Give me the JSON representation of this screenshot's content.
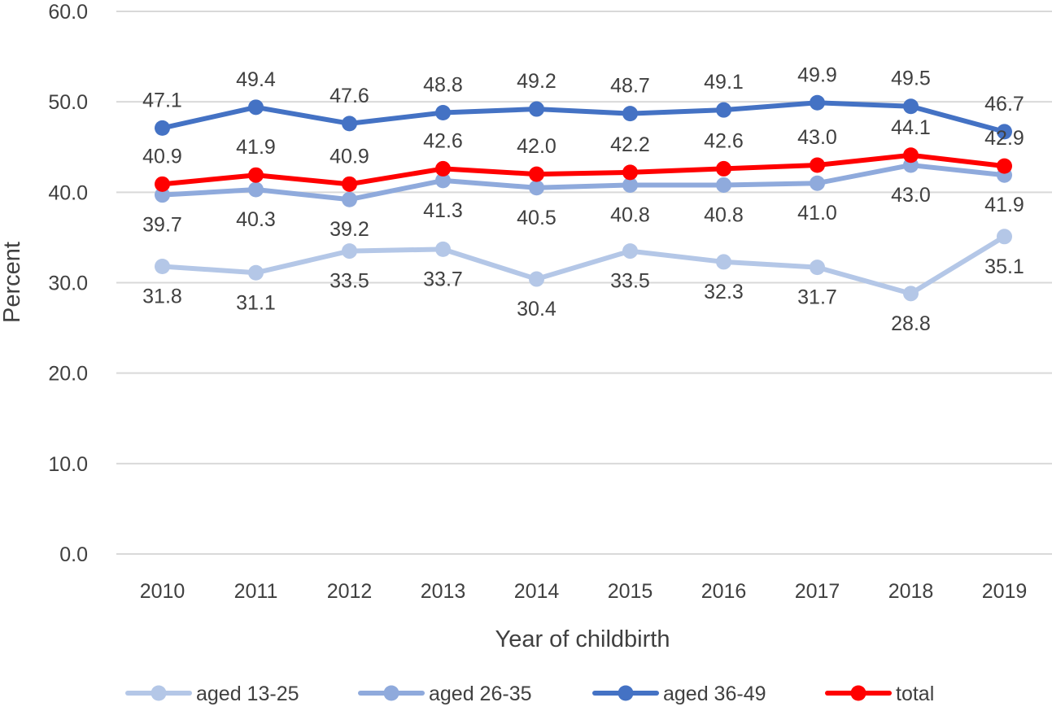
{
  "chart_data": {
    "type": "line",
    "title": "",
    "xlabel": "Year of childbirth",
    "ylabel": "Percent",
    "ylim": [
      0,
      60
    ],
    "yticks": [
      "0.0",
      "10.0",
      "20.0",
      "30.0",
      "40.0",
      "50.0",
      "60.0"
    ],
    "categories": [
      "2010",
      "2011",
      "2012",
      "2013",
      "2014",
      "2015",
      "2016",
      "2017",
      "2018",
      "2019"
    ],
    "legend_position": "bottom",
    "series": [
      {
        "name": "aged 13-25",
        "color": "#b4c7e7",
        "label_position": "below",
        "values": [
          31.8,
          31.1,
          33.5,
          33.7,
          30.4,
          33.5,
          32.3,
          31.7,
          28.8,
          35.1
        ],
        "labels": [
          "31.8",
          "31.1",
          "33.5",
          "33.7",
          "30.4",
          "33.5",
          "32.3",
          "31.7",
          "28.8",
          "35.1"
        ]
      },
      {
        "name": "aged 26-35",
        "color": "#8faadc",
        "label_position": "below",
        "values": [
          39.7,
          40.3,
          39.2,
          41.3,
          40.5,
          40.8,
          40.8,
          41.0,
          43.0,
          41.9
        ],
        "labels": [
          "39.7",
          "40.3",
          "39.2",
          "41.3",
          "40.5",
          "40.8",
          "40.8",
          "41.0",
          "43.0",
          "41.9"
        ]
      },
      {
        "name": "aged 36-49",
        "color": "#4472c4",
        "label_position": "above",
        "values": [
          47.1,
          49.4,
          47.6,
          48.8,
          49.2,
          48.7,
          49.1,
          49.9,
          49.5,
          46.7
        ],
        "labels": [
          "47.1",
          "49.4",
          "47.6",
          "48.8",
          "49.2",
          "48.7",
          "49.1",
          "49.9",
          "49.5",
          "46.7"
        ]
      },
      {
        "name": "total",
        "color": "#ff0000",
        "label_position": "above",
        "values": [
          40.9,
          41.9,
          40.9,
          42.6,
          42.0,
          42.2,
          42.6,
          43.0,
          44.1,
          42.9
        ],
        "labels": [
          "40.9",
          "41.9",
          "40.9",
          "42.6",
          "42.0",
          "42.2",
          "42.6",
          "43.0",
          "44.1",
          "42.9"
        ]
      }
    ]
  }
}
